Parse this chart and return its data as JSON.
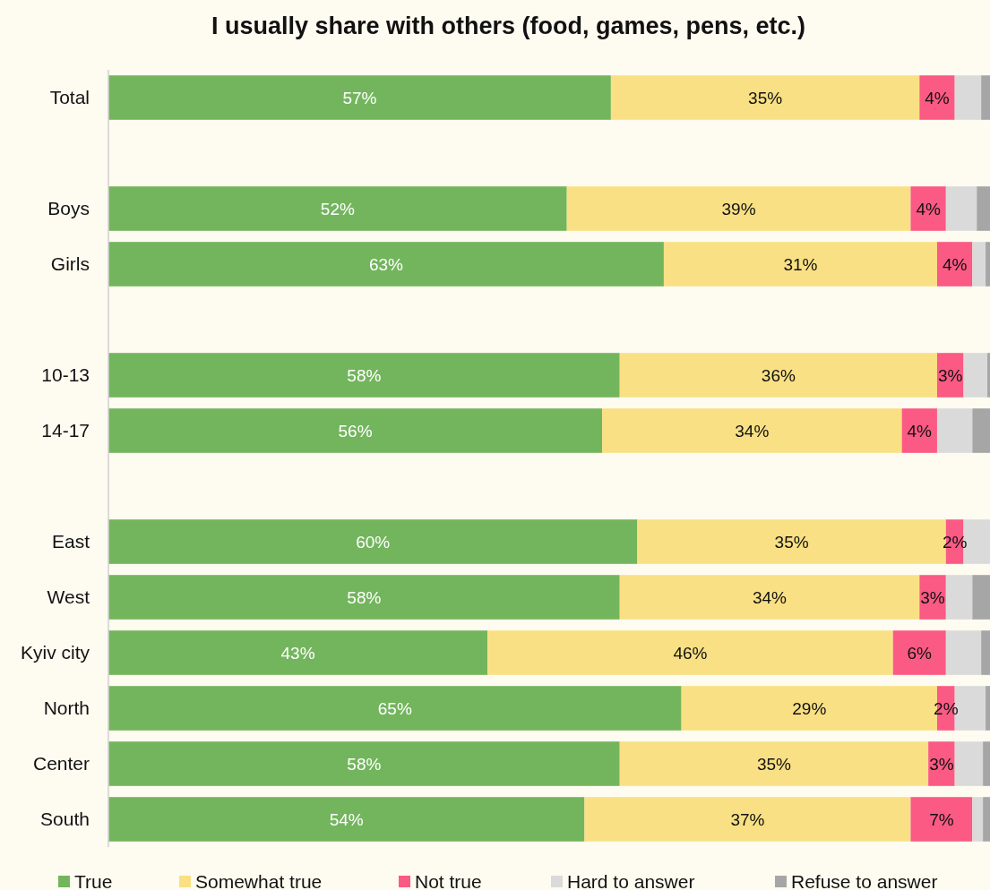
{
  "chart_data": {
    "type": "bar",
    "orientation": "horizontal",
    "stacked": true,
    "title": "I usually share with others (food, games, pens, etc.)",
    "categories": [
      "Total",
      null,
      "Boys",
      "Girls",
      null,
      "10-13",
      "14-17",
      null,
      "East",
      "West",
      "Kyiv city",
      "North",
      "Center",
      "South"
    ],
    "series": [
      {
        "name": "True",
        "color": "#73b55d",
        "values": [
          57,
          null,
          52,
          63,
          null,
          58,
          56,
          null,
          60,
          58,
          43,
          65,
          58,
          54
        ],
        "value_labels": [
          "57%",
          null,
          "52%",
          "63%",
          null,
          "58%",
          "56%",
          null,
          "60%",
          "58%",
          "43%",
          "65%",
          "58%",
          "54%"
        ]
      },
      {
        "name": "Somewhat true",
        "color": "#f9e084",
        "values": [
          35,
          null,
          39,
          31,
          null,
          36,
          34,
          null,
          35,
          34,
          46,
          29,
          35,
          37
        ],
        "value_labels": [
          "35%",
          null,
          "39%",
          "31%",
          null,
          "36%",
          "34%",
          null,
          "35%",
          "34%",
          "46%",
          "29%",
          "35%",
          "37%"
        ]
      },
      {
        "name": "Not true",
        "color": "#fa5a84",
        "values": [
          4,
          null,
          4,
          4,
          null,
          3,
          4,
          null,
          2,
          3,
          6,
          2,
          3,
          7
        ],
        "value_labels": [
          "4%",
          null,
          "4%",
          "4%",
          null,
          "3%",
          "4%",
          null,
          "2%",
          "3%",
          "6%",
          "2%",
          "3%",
          "7%"
        ]
      },
      {
        "name": "Hard to answer",
        "color": "#dadada",
        "values": [
          3,
          null,
          3.5,
          1.5,
          null,
          2.7,
          4,
          null,
          3,
          3,
          4,
          3.5,
          3.2,
          1.2
        ]
      },
      {
        "name": "Refuse to answer",
        "color": "#a6a6a6",
        "values": [
          1,
          null,
          1.5,
          0.5,
          null,
          0.3,
          2,
          null,
          0,
          2,
          1,
          0.5,
          0.8,
          0.8
        ]
      }
    ],
    "legend": "bottom",
    "tick_labels": "y"
  }
}
